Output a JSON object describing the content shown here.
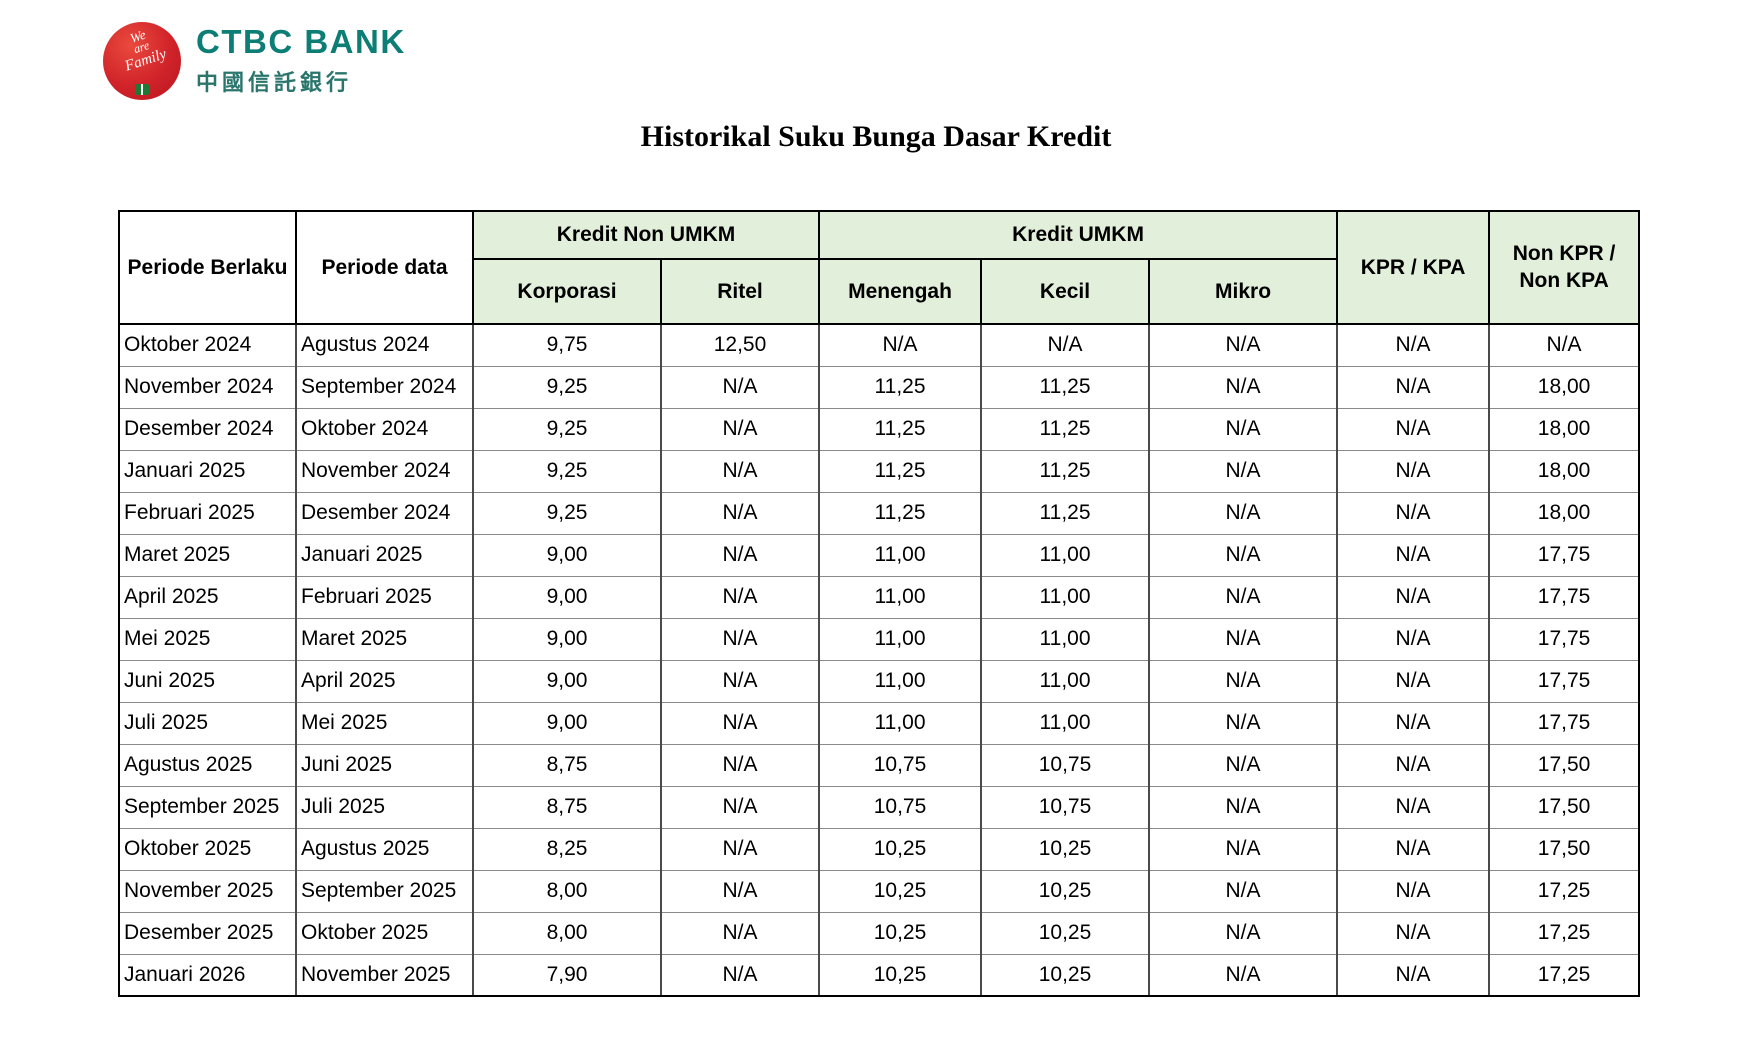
{
  "logo": {
    "bank_name": "CTBC BANK",
    "bank_name_cn": "中國信託銀行",
    "badge_words": [
      "We",
      "are",
      "Family"
    ],
    "brand_teal": "#0d7e75",
    "badge_red": "#d0232a"
  },
  "title": "Historikal Suku Bunga Dasar Kredit",
  "table": {
    "header_bg": "#e2efda",
    "header": {
      "periode_berlaku": "Periode Berlaku",
      "periode_data": "Periode data",
      "kredit_non_umkm": "Kredit Non UMKM",
      "kredit_umkm": "Kredit UMKM",
      "korporasi": "Korporasi",
      "ritel": "Ritel",
      "menengah": "Menengah",
      "kecil": "Kecil",
      "mikro": "Mikro",
      "kpr_kpa": "KPR / KPA",
      "non_kpr_non_kpa": "Non KPR /\nNon KPA"
    },
    "column_keys": [
      "periode-berlaku",
      "periode-data",
      "korporasi",
      "ritel",
      "menengah",
      "kecil",
      "mikro",
      "kpr-kpa",
      "non-kpr-non-kpa"
    ],
    "rows": [
      [
        "Oktober 2024",
        "Agustus 2024",
        "9,75",
        "12,50",
        "N/A",
        "N/A",
        "N/A",
        "N/A",
        "N/A"
      ],
      [
        "November 2024",
        "September 2024",
        "9,25",
        "N/A",
        "11,25",
        "11,25",
        "N/A",
        "N/A",
        "18,00"
      ],
      [
        "Desember 2024",
        "Oktober 2024",
        "9,25",
        "N/A",
        "11,25",
        "11,25",
        "N/A",
        "N/A",
        "18,00"
      ],
      [
        "Januari 2025",
        "November 2024",
        "9,25",
        "N/A",
        "11,25",
        "11,25",
        "N/A",
        "N/A",
        "18,00"
      ],
      [
        "Februari 2025",
        "Desember 2024",
        "9,25",
        "N/A",
        "11,25",
        "11,25",
        "N/A",
        "N/A",
        "18,00"
      ],
      [
        "Maret 2025",
        "Januari 2025",
        "9,00",
        "N/A",
        "11,00",
        "11,00",
        "N/A",
        "N/A",
        "17,75"
      ],
      [
        "April 2025",
        "Februari 2025",
        "9,00",
        "N/A",
        "11,00",
        "11,00",
        "N/A",
        "N/A",
        "17,75"
      ],
      [
        "Mei 2025",
        "Maret 2025",
        "9,00",
        "N/A",
        "11,00",
        "11,00",
        "N/A",
        "N/A",
        "17,75"
      ],
      [
        "Juni 2025",
        "April 2025",
        "9,00",
        "N/A",
        "11,00",
        "11,00",
        "N/A",
        "N/A",
        "17,75"
      ],
      [
        "Juli 2025",
        "Mei 2025",
        "9,00",
        "N/A",
        "11,00",
        "11,00",
        "N/A",
        "N/A",
        "17,75"
      ],
      [
        "Agustus 2025",
        "Juni 2025",
        "8,75",
        "N/A",
        "10,75",
        "10,75",
        "N/A",
        "N/A",
        "17,50"
      ],
      [
        "September 2025",
        "Juli 2025",
        "8,75",
        "N/A",
        "10,75",
        "10,75",
        "N/A",
        "N/A",
        "17,50"
      ],
      [
        "Oktober 2025",
        "Agustus 2025",
        "8,25",
        "N/A",
        "10,25",
        "10,25",
        "N/A",
        "N/A",
        "17,50"
      ],
      [
        "November 2025",
        "September 2025",
        "8,00",
        "N/A",
        "10,25",
        "10,25",
        "N/A",
        "N/A",
        "17,25"
      ],
      [
        "Desember 2025",
        "Oktober 2025",
        "8,00",
        "N/A",
        "10,25",
        "10,25",
        "N/A",
        "N/A",
        "17,25"
      ],
      [
        "Januari 2026",
        "November 2025",
        "7,90",
        "N/A",
        "10,25",
        "10,25",
        "N/A",
        "N/A",
        "17,25"
      ]
    ]
  }
}
